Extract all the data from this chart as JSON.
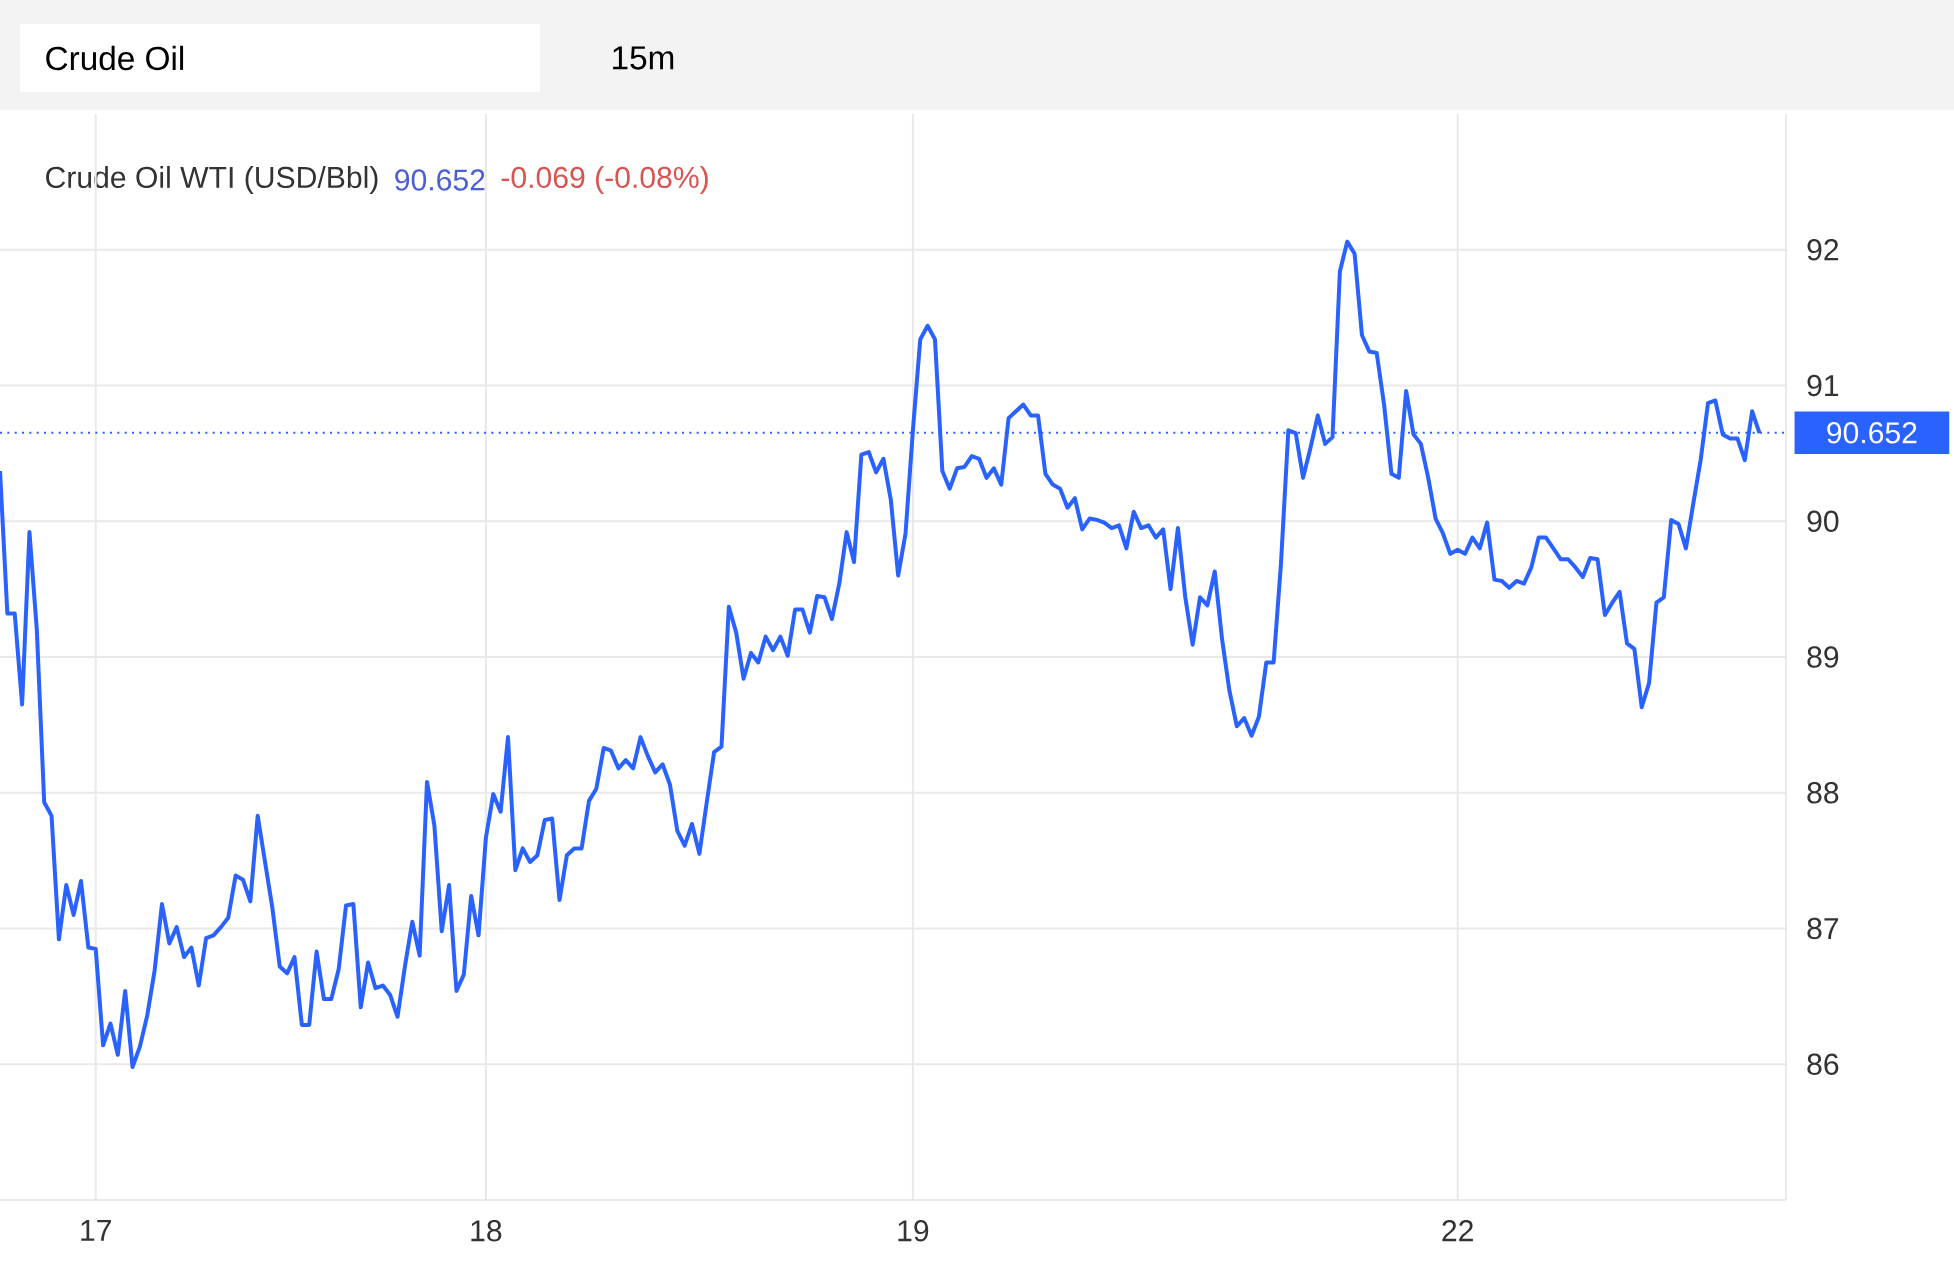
{
  "chart_data": {
    "type": "line",
    "title": "Crude Oil WTI (USD/Bbl)",
    "annotations": [
      "Crude Oil",
      "15m",
      "90.652",
      "-0.069 (-0.08%)"
    ],
    "categories": [
      null,
      null,
      null,
      null,
      null,
      null,
      null,
      null,
      null,
      null,
      null,
      null,
      null,
      "17",
      null,
      null,
      null,
      null,
      null,
      null,
      null,
      null,
      null,
      null,
      null,
      null,
      null,
      null,
      null,
      null,
      null,
      null,
      null,
      null,
      null,
      null,
      null,
      null,
      null,
      null,
      null,
      null,
      null,
      null,
      null,
      null,
      null,
      null,
      null,
      null,
      null,
      null,
      null,
      null,
      null,
      null,
      null,
      null,
      null,
      null,
      null,
      null,
      null,
      null,
      null,
      null,
      "18",
      null,
      null,
      null,
      null,
      null,
      null,
      null,
      null,
      null,
      null,
      null,
      null,
      null,
      null,
      null,
      null,
      null,
      null,
      null,
      null,
      null,
      null,
      null,
      null,
      null,
      null,
      null,
      null,
      null,
      null,
      null,
      null,
      null,
      null,
      null,
      null,
      null,
      null,
      null,
      null,
      null,
      null,
      null,
      null,
      null,
      null,
      null,
      null,
      null,
      null,
      null,
      null,
      null,
      null,
      null,
      null,
      null,
      "19",
      null,
      null,
      null,
      null,
      null,
      null,
      null,
      null,
      null,
      null,
      null,
      null,
      null,
      null,
      null,
      null,
      null,
      null,
      null,
      null,
      null,
      null,
      null,
      null,
      null,
      null,
      null,
      null,
      null,
      null,
      null,
      null,
      null,
      null,
      null,
      null,
      null,
      null,
      null,
      null,
      null,
      null,
      null,
      null,
      null,
      null,
      null,
      null,
      null,
      null,
      null,
      null,
      null,
      null,
      null,
      null,
      null,
      null,
      null,
      null,
      null,
      null,
      null,
      null,
      null,
      null,
      null,
      null,
      null,
      null,
      null,
      null,
      null,
      "22",
      null,
      null,
      null,
      null,
      null,
      null,
      null,
      null,
      null,
      null,
      null,
      null,
      null,
      null,
      null,
      null,
      null,
      null,
      null,
      null,
      null,
      null,
      null,
      null,
      null,
      null,
      null,
      null,
      null,
      null,
      null,
      null,
      null,
      null,
      null,
      null,
      null,
      null,
      null,
      null,
      null
    ],
    "ylim": [
      85,
      93
    ],
    "yticks": [
      86,
      87,
      88,
      89,
      90,
      91,
      92
    ],
    "grid": true,
    "ref_lines": [
      {
        "axis": "y",
        "value": 90.652,
        "label": "90.652",
        "color": "#2962ff",
        "line_style": "dotted"
      }
    ],
    "series": [
      {
        "color": "#2962ff",
        "values": [
          90.37,
          89.32,
          89.32,
          88.65,
          89.92,
          89.2,
          87.93,
          87.83,
          86.92,
          87.32,
          87.1,
          87.35,
          86.86,
          86.85,
          86.14,
          86.3,
          86.07,
          86.54,
          85.98,
          86.13,
          86.36,
          86.69,
          87.18,
          86.89,
          87.01,
          86.79,
          86.86,
          86.58,
          86.93,
          86.95,
          87.01,
          87.08,
          87.39,
          87.36,
          87.2,
          87.83,
          87.49,
          87.15,
          86.72,
          86.67,
          86.79,
          86.29,
          86.29,
          86.83,
          86.48,
          86.48,
          86.7,
          87.17,
          87.18,
          86.42,
          86.75,
          86.56,
          86.58,
          86.51,
          86.35,
          86.72,
          87.05,
          86.8,
          88.08,
          87.76,
          86.98,
          87.32,
          86.54,
          86.66,
          87.24,
          86.95,
          87.67,
          87.99,
          87.86,
          88.41,
          87.43,
          87.59,
          87.49,
          87.54,
          87.8,
          87.81,
          87.21,
          87.54,
          87.59,
          87.59,
          87.94,
          88.03,
          88.33,
          88.31,
          88.18,
          88.24,
          88.18,
          88.41,
          88.27,
          88.15,
          88.21,
          88.06,
          87.72,
          87.61,
          87.77,
          87.55,
          87.93,
          88.3,
          88.34,
          89.37,
          89.18,
          88.84,
          89.03,
          88.96,
          89.15,
          89.05,
          89.15,
          89.01,
          89.35,
          89.35,
          89.18,
          89.45,
          89.44,
          89.28,
          89.54,
          89.92,
          89.7,
          90.49,
          90.51,
          90.36,
          90.46,
          90.16,
          89.6,
          89.91,
          90.67,
          91.34,
          91.44,
          91.34,
          90.37,
          90.24,
          90.39,
          90.4,
          90.48,
          90.46,
          90.32,
          90.39,
          90.27,
          90.76,
          90.81,
          90.86,
          90.78,
          90.78,
          90.35,
          90.27,
          90.24,
          90.1,
          90.17,
          89.94,
          90.02,
          90.01,
          89.99,
          89.95,
          89.97,
          89.8,
          90.07,
          89.95,
          89.97,
          89.88,
          89.94,
          89.5,
          89.95,
          89.44,
          89.09,
          89.44,
          89.38,
          89.63,
          89.13,
          88.75,
          88.49,
          88.55,
          88.42,
          88.56,
          88.96,
          88.96,
          89.69,
          90.67,
          90.65,
          90.32,
          90.54,
          90.78,
          90.57,
          90.62,
          91.84,
          92.06,
          91.97,
          91.37,
          91.25,
          91.24,
          90.86,
          90.35,
          90.32,
          90.96,
          90.64,
          90.57,
          90.32,
          90.02,
          89.91,
          89.76,
          89.79,
          89.76,
          89.88,
          89.8,
          89.99,
          89.57,
          89.56,
          89.51,
          89.56,
          89.54,
          89.66,
          89.88,
          89.88,
          89.8,
          89.72,
          89.72,
          89.66,
          89.59,
          89.73,
          89.72,
          89.31,
          89.4,
          89.48,
          89.1,
          89.06,
          88.63,
          88.81,
          89.4,
          89.44,
          90.01,
          89.98,
          89.8,
          90.13,
          90.45,
          90.87,
          90.89,
          90.64,
          90.61,
          90.61,
          90.45,
          90.81,
          90.65
        ]
      }
    ]
  }
}
